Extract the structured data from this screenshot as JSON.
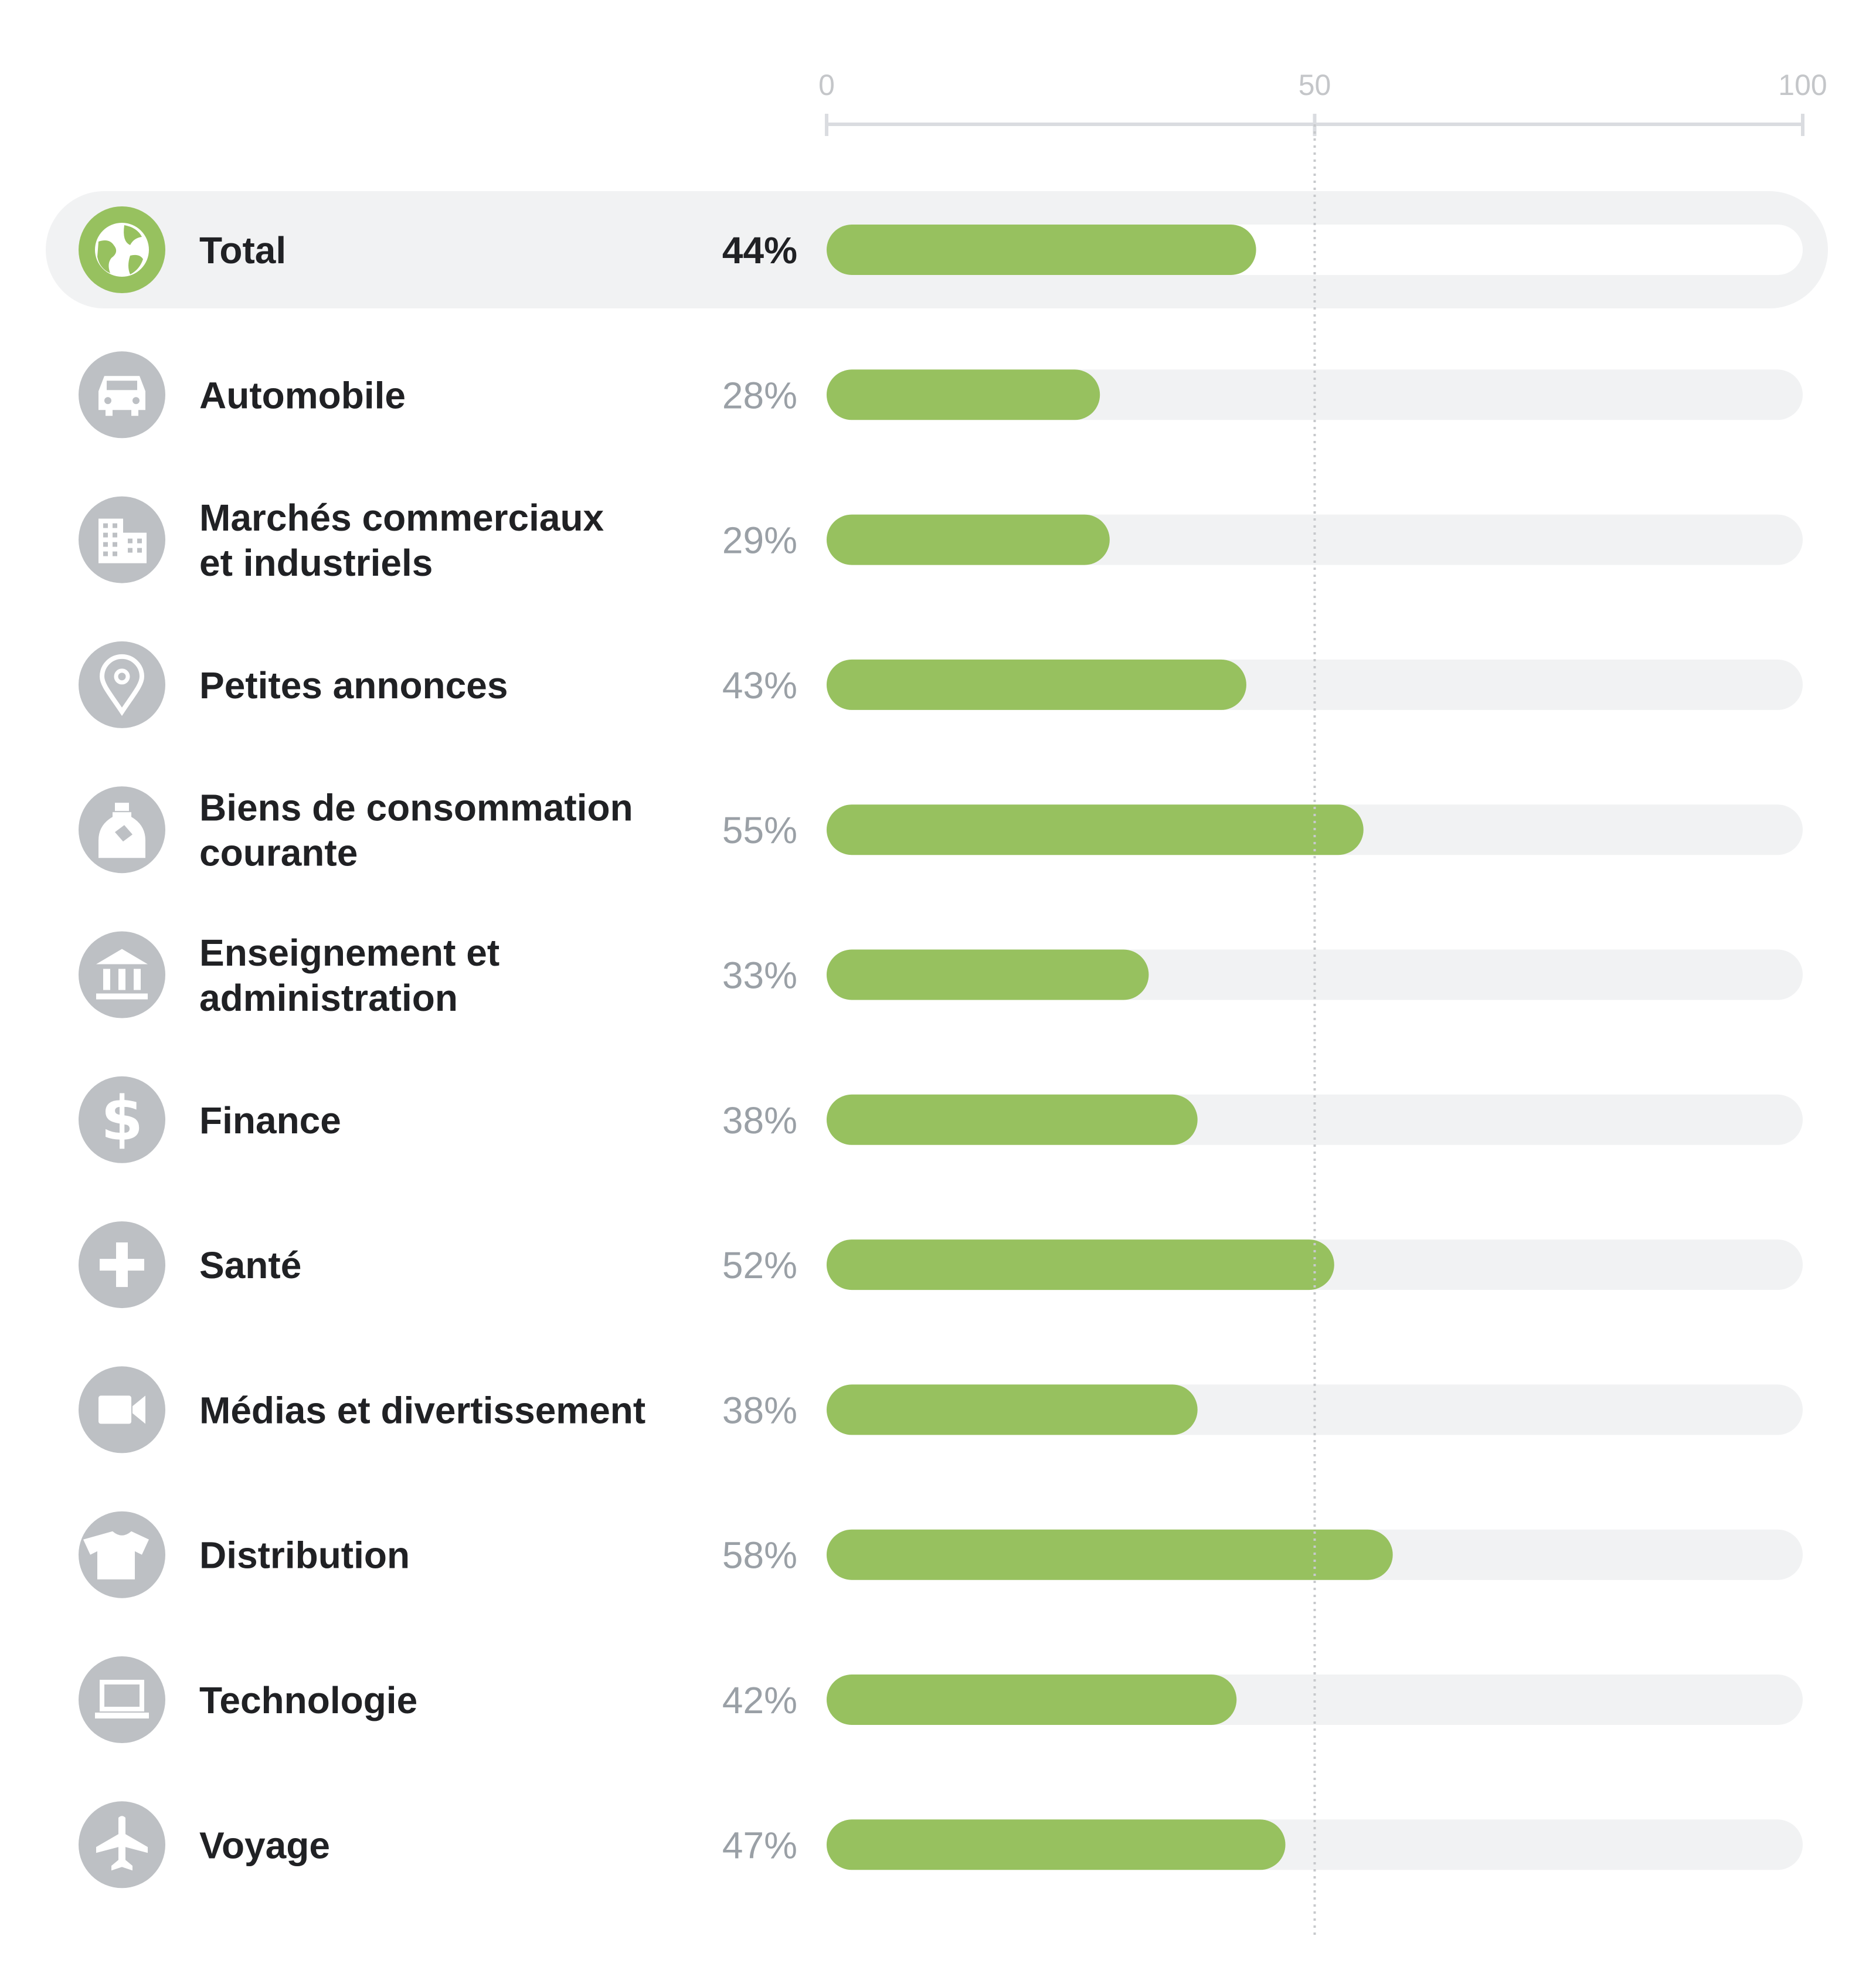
{
  "colors": {
    "bar": "#97c15f",
    "track": "#f1f2f3",
    "track_highlight": "#ffffff",
    "highlight_band": "#f1f2f3",
    "icon_bg": "#bdc0c4",
    "icon_bg_highlight": "#97c15f",
    "axis": "#dadce0",
    "reference_line": "#c7c9cc"
  },
  "chart_data": {
    "type": "bar",
    "orientation": "horizontal",
    "title": "",
    "xlabel": "",
    "ylabel": "",
    "xlim": [
      0,
      100
    ],
    "ticks": [
      "0",
      "50",
      "100"
    ],
    "reference_line": 50,
    "categories": [
      {
        "label": "Total",
        "value": 44,
        "value_label": "44%",
        "icon": "globe-icon",
        "highlight": true
      },
      {
        "label": "Automobile",
        "value": 28,
        "value_label": "28%",
        "icon": "car-icon"
      },
      {
        "label": "Marchés commerciaux\net industriels",
        "value": 29,
        "value_label": "29%",
        "icon": "building-icon"
      },
      {
        "label": "Petites annonces",
        "value": 43,
        "value_label": "43%",
        "icon": "map-pin-icon"
      },
      {
        "label": "Biens de consommation\ncourante",
        "value": 55,
        "value_label": "55%",
        "icon": "bottle-icon"
      },
      {
        "label": "Enseignement et\nadministration",
        "value": 33,
        "value_label": "33%",
        "icon": "bank-icon"
      },
      {
        "label": "Finance",
        "value": 38,
        "value_label": "38%",
        "icon": "dollar-icon"
      },
      {
        "label": "Santé",
        "value": 52,
        "value_label": "52%",
        "icon": "plus-icon"
      },
      {
        "label": "Médias et divertissement",
        "value": 38,
        "value_label": "38%",
        "icon": "video-camera-icon"
      },
      {
        "label": "Distribution",
        "value": 58,
        "value_label": "58%",
        "icon": "shirt-icon"
      },
      {
        "label": "Technologie",
        "value": 42,
        "value_label": "42%",
        "icon": "laptop-icon"
      },
      {
        "label": "Voyage",
        "value": 47,
        "value_label": "47%",
        "icon": "airplane-icon"
      }
    ]
  }
}
